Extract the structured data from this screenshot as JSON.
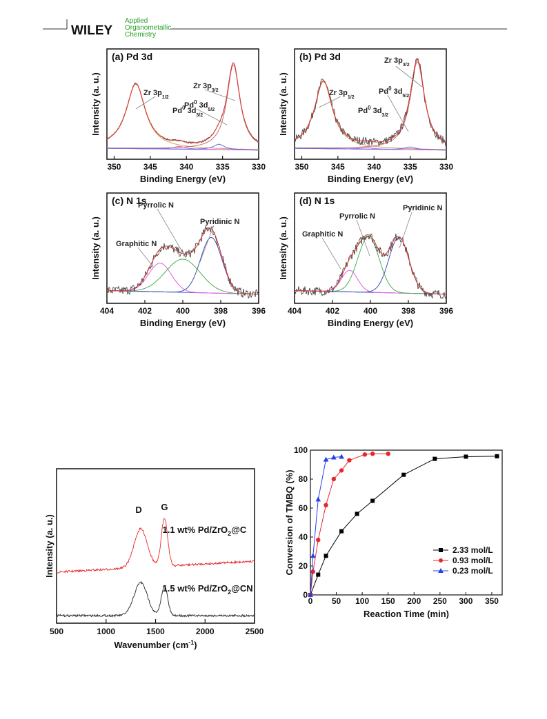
{
  "journal": {
    "publisher": "WILEY",
    "line1": "Applied",
    "line2": "Organometallic",
    "line3": "Chemistry",
    "rule_color": "#333333",
    "accent_red": "#d7191c",
    "accent_green": "#2ca02c"
  },
  "xps": [
    {
      "title": "(a) Pd 3d",
      "xlabel": "Binding Energy (eV)",
      "ylabel": "Intensity (a. u.)",
      "ticks": [
        "350",
        "345",
        "340",
        "335",
        "330"
      ],
      "xrange": [
        351,
        330
      ],
      "labels": [
        {
          "main": "Zr 3p",
          "sub": "1/2"
        },
        {
          "main": "Pd",
          "sup": "0",
          "rest": " 3d",
          "sub": "3/2"
        },
        {
          "main": "Zr 3p",
          "sub": "3/2"
        },
        {
          "main": "Pd",
          "sup": "0",
          "rest": " 3d",
          "sub": "5/2"
        }
      ]
    },
    {
      "title": "(b) Pd 3d",
      "xlabel": "Binding Energy (eV)",
      "ylabel": "Intensity (a. u.)",
      "ticks": [
        "350",
        "345",
        "340",
        "335",
        "330"
      ],
      "xrange": [
        351,
        330
      ],
      "labels": [
        {
          "main": "Zr 3p",
          "sub": "1/2"
        },
        {
          "main": "Pd",
          "sup": "0",
          "rest": " 3d",
          "sub": "3/2"
        },
        {
          "main": "Zr 3p",
          "sub": "3/2"
        },
        {
          "main": "Pd",
          "sup": "0",
          "rest": " 3d",
          "sub": "5/2"
        }
      ]
    },
    {
      "title": "(c) N 1s",
      "xlabel": "Binding Energy (eV)",
      "ylabel": "Intensity (a. u.)",
      "ticks": [
        "404",
        "402",
        "400",
        "398",
        "396"
      ],
      "xrange": [
        404,
        396
      ],
      "labels": [
        {
          "main": "Graphitic N"
        },
        {
          "main": "Pyrrolic N"
        },
        {
          "main": "Pyridinic N"
        }
      ]
    },
    {
      "title": "(d) N 1s",
      "xlabel": "Binding Energy (eV)",
      "ylabel": "Intensity (a. u.)",
      "ticks": [
        "404",
        "402",
        "400",
        "398",
        "396"
      ],
      "xrange": [
        404,
        396
      ],
      "labels": [
        {
          "main": "Graphitic N"
        },
        {
          "main": "Pyrrolic N"
        },
        {
          "main": "Pyridinic N"
        }
      ]
    }
  ],
  "chart_data": [
    {
      "type": "line",
      "title": "(a) Pd 3d",
      "xlabel": "Binding Energy (eV)",
      "ylabel": "Intensity (a. u.)",
      "xlim": [
        351,
        330
      ],
      "series": [
        {
          "name": "Zr 3p1/2",
          "peak_center": 347.0
        },
        {
          "name": "Pd0 3d3/2",
          "peak_center": 341.0
        },
        {
          "name": "Zr 3p3/2",
          "peak_center": 333.5
        },
        {
          "name": "Pd0 3d5/2",
          "peak_center": 335.5
        }
      ]
    },
    {
      "type": "line",
      "title": "(b) Pd 3d",
      "xlabel": "Binding Energy (eV)",
      "ylabel": "Intensity (a. u.)",
      "xlim": [
        351,
        330
      ],
      "series": [
        {
          "name": "Zr 3p1/2",
          "peak_center": 347.0
        },
        {
          "name": "Pd0 3d3/2",
          "peak_center": 341.0
        },
        {
          "name": "Zr 3p3/2",
          "peak_center": 334.0
        },
        {
          "name": "Pd0 3d5/2",
          "peak_center": 335.0
        }
      ]
    },
    {
      "type": "line",
      "title": "(c) N 1s",
      "xlabel": "Binding Energy (eV)",
      "ylabel": "Intensity (a. u.)",
      "xlim": [
        404,
        396
      ],
      "series": [
        {
          "name": "Graphitic N",
          "peak_center": 401.2
        },
        {
          "name": "Pyrrolic N",
          "peak_center": 400.0
        },
        {
          "name": "Pyridinic N",
          "peak_center": 398.5
        }
      ]
    },
    {
      "type": "line",
      "title": "(d) N 1s",
      "xlabel": "Binding Energy (eV)",
      "ylabel": "Intensity (a. u.)",
      "xlim": [
        404,
        396
      ],
      "series": [
        {
          "name": "Graphitic N",
          "peak_center": 401.1
        },
        {
          "name": "Pyrrolic N",
          "peak_center": 400.1
        },
        {
          "name": "Pyridinic N",
          "peak_center": 398.5
        }
      ]
    },
    {
      "type": "line",
      "xlabel": "Wavenumber (cm-1)",
      "ylabel": "Intensity (a. u.)",
      "xlim": [
        500,
        2500
      ],
      "xticks": [
        "500",
        "1000",
        "1500",
        "2000",
        "2500"
      ],
      "peak_labels": [
        "D",
        "G"
      ],
      "series": [
        {
          "name": "1.1 wt% Pd/ZrO2@C",
          "D": 1350,
          "G": 1590,
          "color": "#e8262b"
        },
        {
          "name": "1.5 wt% Pd/ZrO2@CN",
          "D": 1350,
          "G": 1590,
          "color": "#222222"
        }
      ]
    },
    {
      "type": "line",
      "xlabel": "Reaction Time (min)",
      "ylabel": "Conversion of TMBQ (%)",
      "xlim": [
        0,
        370
      ],
      "ylim": [
        0,
        100
      ],
      "xticks": [
        0,
        50,
        100,
        150,
        200,
        250,
        300,
        350
      ],
      "yticks": [
        0,
        20,
        40,
        60,
        80,
        100
      ],
      "legend": "bottom-right",
      "series": [
        {
          "name": "2.33 mol/L",
          "color": "#000000",
          "marker": "square",
          "x": [
            0,
            15,
            30,
            60,
            90,
            120,
            180,
            240,
            300,
            360
          ],
          "y": [
            0,
            14,
            27,
            44,
            56,
            65,
            83,
            94,
            95.5,
            95.8
          ]
        },
        {
          "name": "0.93 mol/L",
          "color": "#e8262b",
          "marker": "circle",
          "x": [
            0,
            5,
            15,
            30,
            45,
            60,
            75,
            105,
            120,
            150
          ],
          "y": [
            0,
            16,
            38,
            62,
            80,
            86,
            93,
            97,
            97.5,
            97.5
          ]
        },
        {
          "name": "0.23 mol/L",
          "color": "#2540e8",
          "marker": "triangle",
          "x": [
            0,
            5,
            15,
            30,
            45,
            60
          ],
          "y": [
            0,
            27,
            66,
            93.5,
            95,
            95.5
          ]
        }
      ]
    }
  ]
}
